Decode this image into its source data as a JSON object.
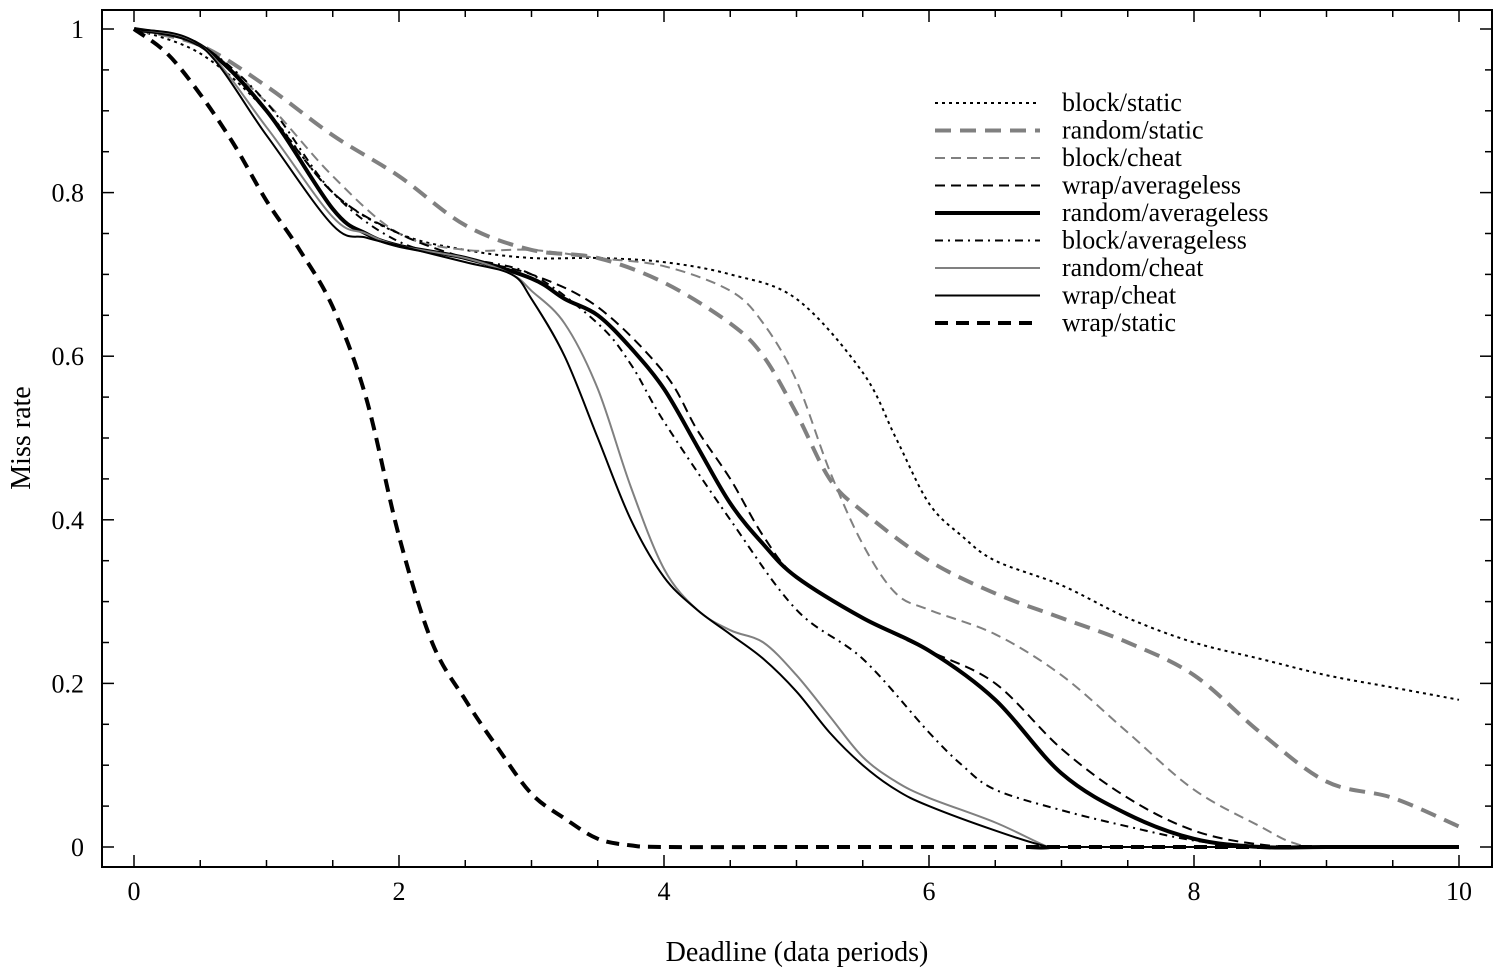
{
  "chart_data": {
    "type": "line",
    "title": "",
    "xlabel": "Deadline (data periods)",
    "ylabel": "Miss rate",
    "xlim": [
      -0.25,
      10.25
    ],
    "ylim": [
      -0.03,
      1.02
    ],
    "xticks": [
      0,
      2,
      4,
      6,
      8,
      10
    ],
    "xtick_labels": [
      "0",
      "2",
      "4",
      "6",
      "8",
      "10"
    ],
    "yticks": [
      0,
      0.2,
      0.4,
      0.6,
      0.8,
      1
    ],
    "ytick_labels": [
      "0",
      "0.2",
      "0.4",
      "0.6",
      "0.8",
      "1"
    ],
    "grid": false,
    "legend_position": "top-right",
    "series": [
      {
        "name": "block/static",
        "color": "#000000",
        "dash": "dotted",
        "weight": "thin",
        "x": [
          0,
          0.5,
          1,
          1.5,
          2,
          2.5,
          3,
          3.5,
          4,
          4.5,
          5,
          5.5,
          5.75,
          6,
          6.25,
          6.5,
          7,
          7.5,
          8,
          8.5,
          9,
          9.5,
          10
        ],
        "y": [
          1.0,
          0.97,
          0.9,
          0.8,
          0.75,
          0.73,
          0.72,
          0.72,
          0.715,
          0.7,
          0.67,
          0.58,
          0.5,
          0.42,
          0.38,
          0.35,
          0.32,
          0.28,
          0.25,
          0.23,
          0.21,
          0.195,
          0.18
        ]
      },
      {
        "name": "random/static",
        "color": "#808080",
        "dash": "long-dash",
        "weight": "thick",
        "x": [
          0,
          0.5,
          1,
          1.5,
          2,
          2.5,
          3,
          3.5,
          4,
          4.5,
          4.75,
          5,
          5.25,
          5.5,
          6,
          6.5,
          7,
          7.5,
          8,
          8.5,
          9,
          9.5,
          10
        ],
        "y": [
          1.0,
          0.98,
          0.93,
          0.87,
          0.82,
          0.76,
          0.73,
          0.72,
          0.69,
          0.64,
          0.6,
          0.53,
          0.45,
          0.41,
          0.35,
          0.31,
          0.28,
          0.25,
          0.21,
          0.14,
          0.08,
          0.06,
          0.025
        ]
      },
      {
        "name": "block/cheat",
        "color": "#808080",
        "dash": "dashed",
        "weight": "thin",
        "x": [
          0,
          0.5,
          1,
          1.5,
          2,
          2.5,
          3,
          3.5,
          4,
          4.5,
          4.75,
          5,
          5.25,
          5.5,
          5.75,
          6,
          6.5,
          7,
          7.5,
          8,
          8.5,
          8.75,
          9,
          10
        ],
        "y": [
          1.0,
          0.98,
          0.91,
          0.82,
          0.75,
          0.73,
          0.73,
          0.72,
          0.71,
          0.68,
          0.64,
          0.57,
          0.46,
          0.37,
          0.31,
          0.29,
          0.26,
          0.21,
          0.14,
          0.07,
          0.025,
          0.005,
          0.0,
          0.0
        ]
      },
      {
        "name": "wrap/averageless",
        "color": "#000000",
        "dash": "dashed",
        "weight": "thin",
        "x": [
          0,
          0.5,
          1,
          1.5,
          2,
          2.5,
          3,
          3.5,
          4,
          4.25,
          4.5,
          4.75,
          5,
          5.5,
          6,
          6.5,
          7,
          7.5,
          8,
          8.5,
          9,
          10
        ],
        "y": [
          1.0,
          0.98,
          0.9,
          0.8,
          0.75,
          0.72,
          0.7,
          0.66,
          0.58,
          0.51,
          0.45,
          0.38,
          0.33,
          0.28,
          0.24,
          0.2,
          0.12,
          0.06,
          0.02,
          0.003,
          0.0,
          0.0
        ]
      },
      {
        "name": "random/averageless",
        "color": "#000000",
        "dash": "solid",
        "weight": "thick",
        "x": [
          0,
          0.5,
          1,
          1.5,
          1.75,
          2,
          2.5,
          3,
          3.25,
          3.5,
          3.75,
          4,
          4.25,
          4.5,
          4.75,
          5,
          5.5,
          6,
          6.5,
          7,
          7.5,
          8,
          8.5,
          9,
          10
        ],
        "y": [
          1.0,
          0.98,
          0.9,
          0.78,
          0.75,
          0.735,
          0.72,
          0.695,
          0.67,
          0.65,
          0.61,
          0.56,
          0.49,
          0.42,
          0.37,
          0.33,
          0.28,
          0.24,
          0.18,
          0.09,
          0.04,
          0.01,
          0.0,
          0.0,
          0.0
        ]
      },
      {
        "name": "block/averageless",
        "color": "#000000",
        "dash": "dash-dot",
        "weight": "thin",
        "x": [
          0,
          0.5,
          1,
          1.5,
          2,
          2.5,
          3,
          3.5,
          3.75,
          4,
          4.5,
          5,
          5.5,
          6,
          6.25,
          6.5,
          7,
          7.5,
          8,
          8.5,
          9,
          10
        ],
        "y": [
          1.0,
          0.98,
          0.91,
          0.8,
          0.74,
          0.72,
          0.7,
          0.64,
          0.59,
          0.52,
          0.4,
          0.29,
          0.23,
          0.14,
          0.1,
          0.07,
          0.045,
          0.025,
          0.008,
          0.0,
          0.0,
          0.0
        ]
      },
      {
        "name": "random/cheat",
        "color": "#808080",
        "dash": "solid",
        "weight": "thin",
        "x": [
          0,
          0.5,
          1,
          1.5,
          1.75,
          2,
          2.5,
          2.85,
          3,
          3.25,
          3.5,
          3.75,
          4,
          4.25,
          4.5,
          4.75,
          5,
          5.25,
          5.5,
          5.75,
          6,
          6.5,
          6.9,
          7,
          10
        ],
        "y": [
          1.0,
          0.98,
          0.88,
          0.77,
          0.75,
          0.735,
          0.72,
          0.7,
          0.68,
          0.64,
          0.56,
          0.44,
          0.34,
          0.29,
          0.265,
          0.25,
          0.21,
          0.16,
          0.11,
          0.08,
          0.06,
          0.03,
          0.0,
          0.0,
          0.0
        ]
      },
      {
        "name": "wrap/cheat",
        "color": "#000000",
        "dash": "solid",
        "weight": "thin",
        "x": [
          0,
          0.5,
          1,
          1.5,
          1.75,
          2,
          2.5,
          2.85,
          3,
          3.25,
          3.5,
          3.75,
          4,
          4.25,
          4.5,
          4.75,
          5,
          5.25,
          5.5,
          5.75,
          6,
          6.5,
          6.9,
          7,
          10
        ],
        "y": [
          1.0,
          0.98,
          0.87,
          0.76,
          0.745,
          0.735,
          0.715,
          0.7,
          0.67,
          0.6,
          0.5,
          0.4,
          0.33,
          0.29,
          0.26,
          0.23,
          0.19,
          0.14,
          0.1,
          0.07,
          0.05,
          0.02,
          0.0,
          0.0,
          0.0
        ]
      },
      {
        "name": "wrap/static",
        "color": "#000000",
        "dash": "dashed",
        "weight": "thick",
        "x": [
          0,
          0.25,
          0.5,
          0.75,
          1,
          1.25,
          1.5,
          1.75,
          2,
          2.25,
          2.5,
          2.75,
          3,
          3.25,
          3.5,
          3.75,
          4,
          5,
          6,
          7,
          8,
          9,
          10
        ],
        "y": [
          1.0,
          0.97,
          0.92,
          0.86,
          0.79,
          0.73,
          0.66,
          0.55,
          0.38,
          0.25,
          0.18,
          0.12,
          0.065,
          0.035,
          0.01,
          0.002,
          0.0,
          0.0,
          0.0,
          0.0,
          0.0,
          0.0,
          0.0
        ]
      }
    ]
  }
}
